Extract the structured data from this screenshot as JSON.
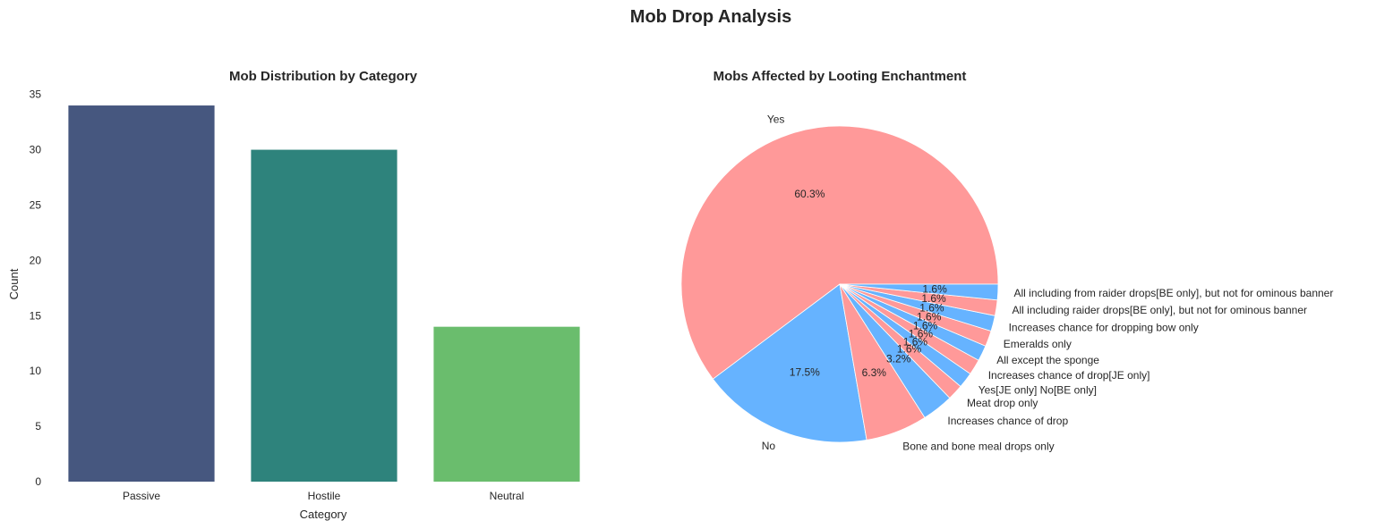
{
  "figure": {
    "suptitle": "Mob Drop Analysis"
  },
  "colors": {
    "axes_bg": "#eaeaf2",
    "grid": "#ffffff",
    "bars": [
      "#46577f",
      "#2e837c",
      "#6abd6d"
    ],
    "pie": [
      "#ff9999",
      "#66b3ff"
    ]
  },
  "chart_data": [
    {
      "type": "bar",
      "title": "Mob Distribution by Category",
      "xlabel": "Category",
      "ylabel": "Count",
      "categories": [
        "Passive",
        "Hostile",
        "Neutral"
      ],
      "values": [
        34,
        30,
        14
      ],
      "ylim": [
        0,
        35.7
      ],
      "yticks": [
        0,
        5,
        10,
        15,
        20,
        25,
        30,
        35
      ],
      "grid": true
    },
    {
      "type": "pie",
      "title": "Mobs Affected by Looting Enchantment",
      "labels": [
        "Yes",
        "No",
        "Bone and bone meal drops only",
        "Increases chance of drop",
        "Meat drop only",
        "Yes[JE only] No[BE only]",
        "Increases chance of drop[JE only]",
        "All except the sponge",
        "Emeralds only",
        "Increases chance for dropping bow only",
        "All including raider drops[BE only], but not for ominous banner",
        "All including from raider drops[BE only], but not for ominous banner"
      ],
      "values": [
        60.3,
        17.5,
        6.3,
        3.2,
        1.6,
        1.6,
        1.6,
        1.6,
        1.6,
        1.6,
        1.6,
        1.6
      ],
      "pct_labels": [
        "60.3%",
        "17.5%",
        "6.3%",
        "3.2%",
        "1.6%",
        "1.6%",
        "1.6%",
        "1.6%",
        "1.6%",
        "1.6%",
        "1.6%",
        "1.6%"
      ]
    }
  ]
}
